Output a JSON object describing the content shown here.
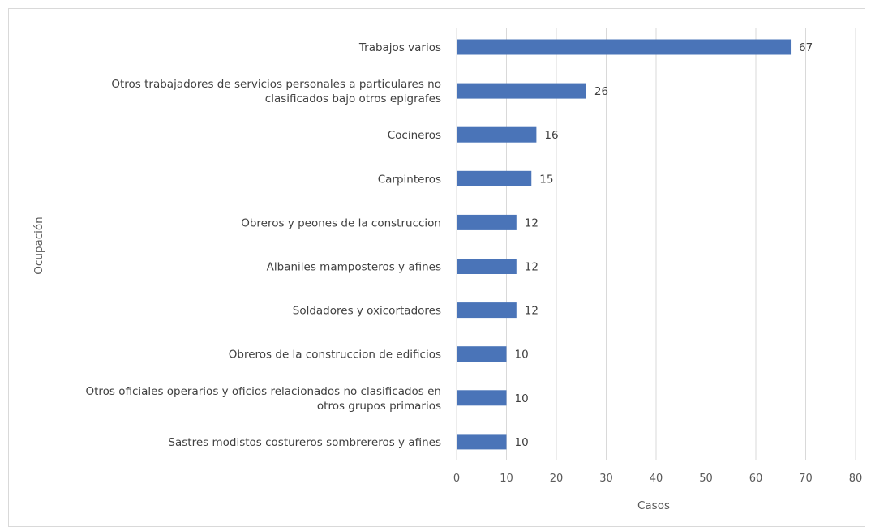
{
  "chart_data": {
    "type": "bar",
    "orientation": "horizontal",
    "title": "",
    "xlabel": "Casos",
    "ylabel": "Ocupación",
    "xlim": [
      0,
      80
    ],
    "xticks": [
      0,
      10,
      20,
      30,
      40,
      50,
      60,
      70,
      80
    ],
    "grid": true,
    "legend": "none",
    "bar_color": "#4a74b8",
    "categories": [
      [
        "Trabajos varios"
      ],
      [
        "Otros trabajadores de servicios personales a particulares no",
        "clasificados bajo otros epigrafes"
      ],
      [
        "Cocineros"
      ],
      [
        "Carpinteros"
      ],
      [
        "Obreros y peones de la construccion"
      ],
      [
        "Albaniles mamposteros y afines"
      ],
      [
        "Soldadores y oxicortadores"
      ],
      [
        "Obreros de la construccion de edificios"
      ],
      [
        "Otros oficiales operarios y oficios relacionados no clasificados en",
        "otros grupos primarios"
      ],
      [
        "Sastres modistos costureros sombrereros y afines"
      ]
    ],
    "values": [
      67,
      26,
      16,
      15,
      12,
      12,
      12,
      10,
      10,
      10
    ]
  }
}
